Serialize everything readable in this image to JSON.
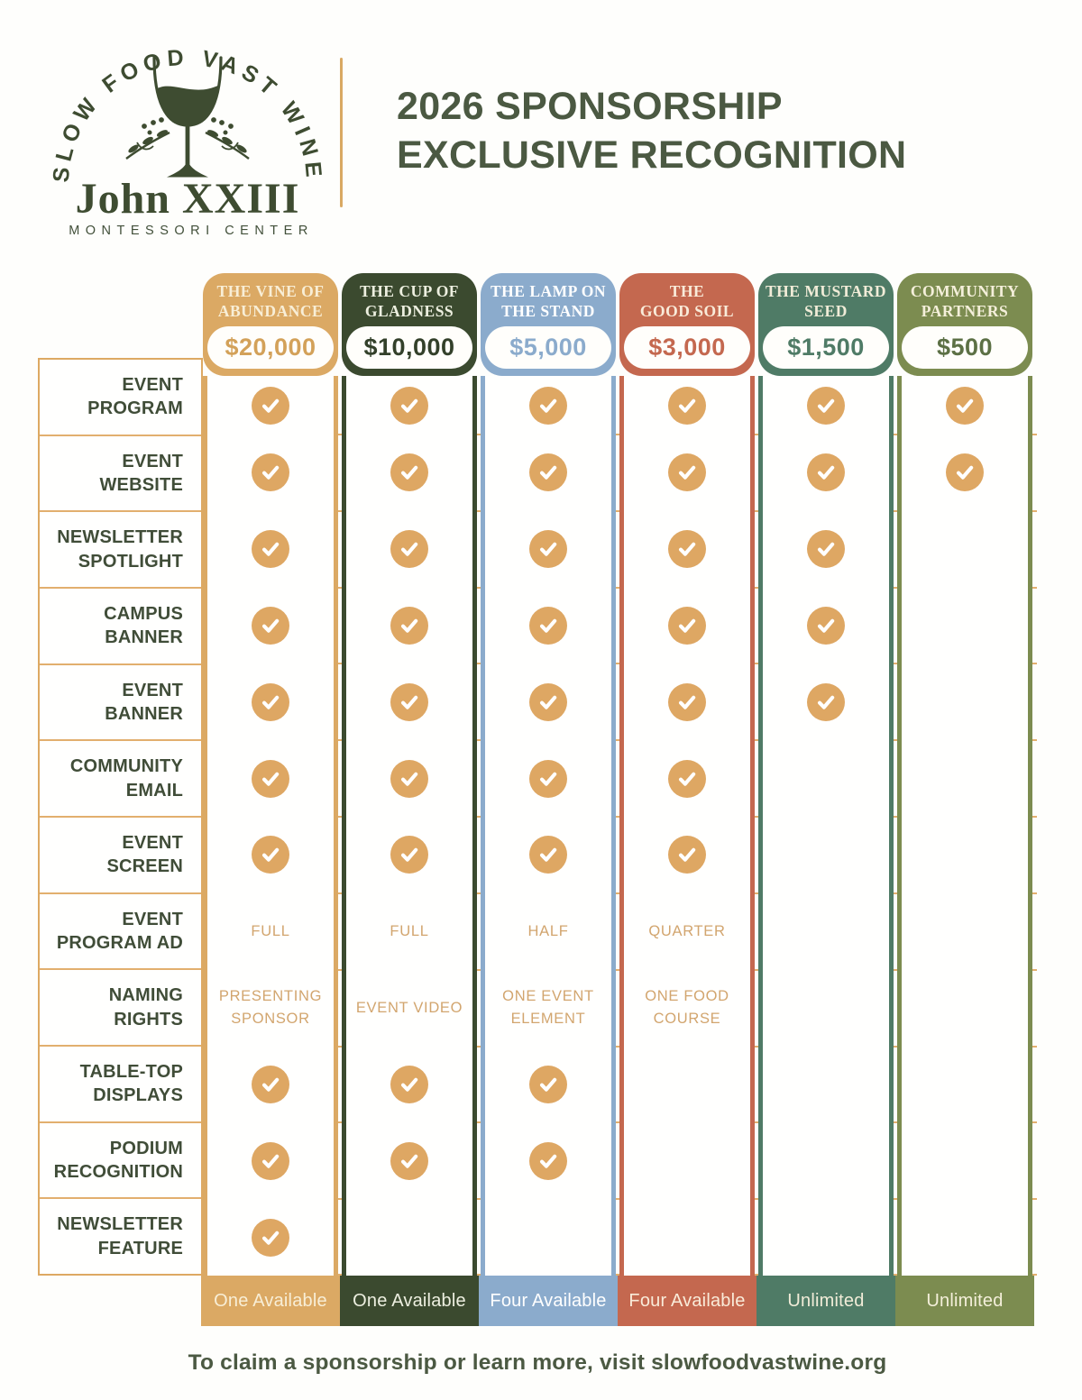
{
  "header": {
    "logo": {
      "arc_text": "SLOW FOOD VAST WINE",
      "name": "John XXIII",
      "subtitle": "MONTESSORI CENTER"
    },
    "title_line1": "2026 SPONSORSHIP",
    "title_line2": "EXCLUSIVE RECOGNITION"
  },
  "table": {
    "columns": [
      {
        "name_lines": [
          "THE VINE OF",
          "ABUNDANCE"
        ],
        "price": "$20,000",
        "availability": "One Available",
        "color": "#dba964",
        "name_color": "#f8eed6",
        "price_color": "#d3a159"
      },
      {
        "name_lines": [
          "THE CUP OF",
          "GLADNESS"
        ],
        "price": "$10,000",
        "availability": "One Available",
        "color": "#3b4a2f",
        "name_color": "#edefe0",
        "price_color": "#33402a"
      },
      {
        "name_lines": [
          "THE LAMP ON",
          "THE STAND"
        ],
        "price": "$5,000",
        "availability": "Four Available",
        "color": "#8babcc",
        "name_color": "#ffffff",
        "price_color": "#8babcc"
      },
      {
        "name_lines": [
          "THE",
          "GOOD SOIL"
        ],
        "price": "$3,000",
        "availability": "Four Available",
        "color": "#c4684f",
        "name_color": "#f9ebd9",
        "price_color": "#c4684f"
      },
      {
        "name_lines": [
          "THE MUSTARD",
          "SEED"
        ],
        "price": "$1,500",
        "availability": "Unlimited",
        "color": "#4f7b66",
        "name_color": "#f1ecd8",
        "price_color": "#4f7b66"
      },
      {
        "name_lines": [
          "COMMUNITY",
          "PARTNERS"
        ],
        "price": "$500",
        "availability": "Unlimited",
        "color": "#7c8c50",
        "name_color": "#f4efda",
        "price_color": "#5c7045"
      }
    ],
    "rows": [
      {
        "label_lines": [
          "EVENT",
          "PROGRAM"
        ],
        "cells": [
          "check",
          "check",
          "check",
          "check",
          "check",
          "check"
        ]
      },
      {
        "label_lines": [
          "EVENT",
          "WEBSITE"
        ],
        "cells": [
          "check",
          "check",
          "check",
          "check",
          "check",
          "check"
        ]
      },
      {
        "label_lines": [
          "NEWSLETTER",
          "SPOTLIGHT"
        ],
        "cells": [
          "check",
          "check",
          "check",
          "check",
          "check",
          ""
        ]
      },
      {
        "label_lines": [
          "CAMPUS",
          "BANNER"
        ],
        "cells": [
          "check",
          "check",
          "check",
          "check",
          "check",
          ""
        ]
      },
      {
        "label_lines": [
          "EVENT",
          "BANNER"
        ],
        "cells": [
          "check",
          "check",
          "check",
          "check",
          "check",
          ""
        ]
      },
      {
        "label_lines": [
          "COMMUNITY",
          "EMAIL"
        ],
        "cells": [
          "check",
          "check",
          "check",
          "check",
          "",
          ""
        ]
      },
      {
        "label_lines": [
          "EVENT",
          "SCREEN"
        ],
        "cells": [
          "check",
          "check",
          "check",
          "check",
          "",
          ""
        ]
      },
      {
        "label_lines": [
          "EVENT",
          "PROGRAM AD"
        ],
        "cells": [
          "FULL",
          "FULL",
          "HALF",
          "QUARTER",
          "",
          ""
        ]
      },
      {
        "label_lines": [
          "NAMING",
          "RIGHTS"
        ],
        "cells": [
          "PRESENTING SPONSOR",
          "EVENT VIDEO",
          "ONE EVENT ELEMENT",
          "ONE FOOD COURSE",
          "",
          ""
        ]
      },
      {
        "label_lines": [
          "TABLE-TOP",
          "DISPLAYS"
        ],
        "cells": [
          "check",
          "check",
          "check",
          "",
          "",
          ""
        ]
      },
      {
        "label_lines": [
          "PODIUM",
          "RECOGNITION"
        ],
        "cells": [
          "check",
          "check",
          "check",
          "",
          "",
          ""
        ]
      },
      {
        "label_lines": [
          "NEWSLETTER",
          "FEATURE"
        ],
        "cells": [
          "check",
          "",
          "",
          "",
          "",
          ""
        ]
      }
    ]
  },
  "footer": {
    "text": "To claim a sponsorship or learn more, visit slowfoodvastwine.org"
  },
  "colors": {
    "grid_line": "#e2af6e",
    "check_gold": "#dea763",
    "title_green": "#4b5942",
    "label_green": "#404d38",
    "divider_tan": "#d9a963"
  }
}
